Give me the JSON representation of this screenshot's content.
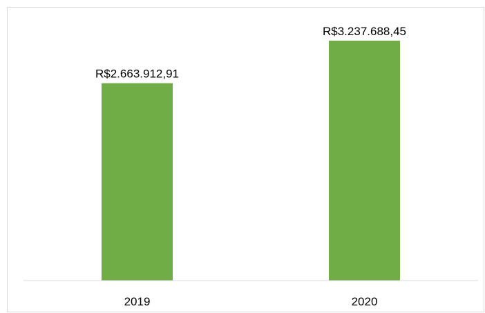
{
  "chart_data": {
    "type": "bar",
    "categories": [
      "2019",
      "2020"
    ],
    "values": [
      2663912.91,
      3237688.45
    ],
    "data_labels": [
      "R$2.663.912,91",
      "R$3.237.688,45"
    ],
    "bar_color": "#70ad47",
    "axis_color": "#d9d9d9",
    "ylim": [
      0,
      3237688.45
    ],
    "grid": false,
    "legend": "none",
    "title": "",
    "xlabel": "",
    "ylabel": ""
  }
}
